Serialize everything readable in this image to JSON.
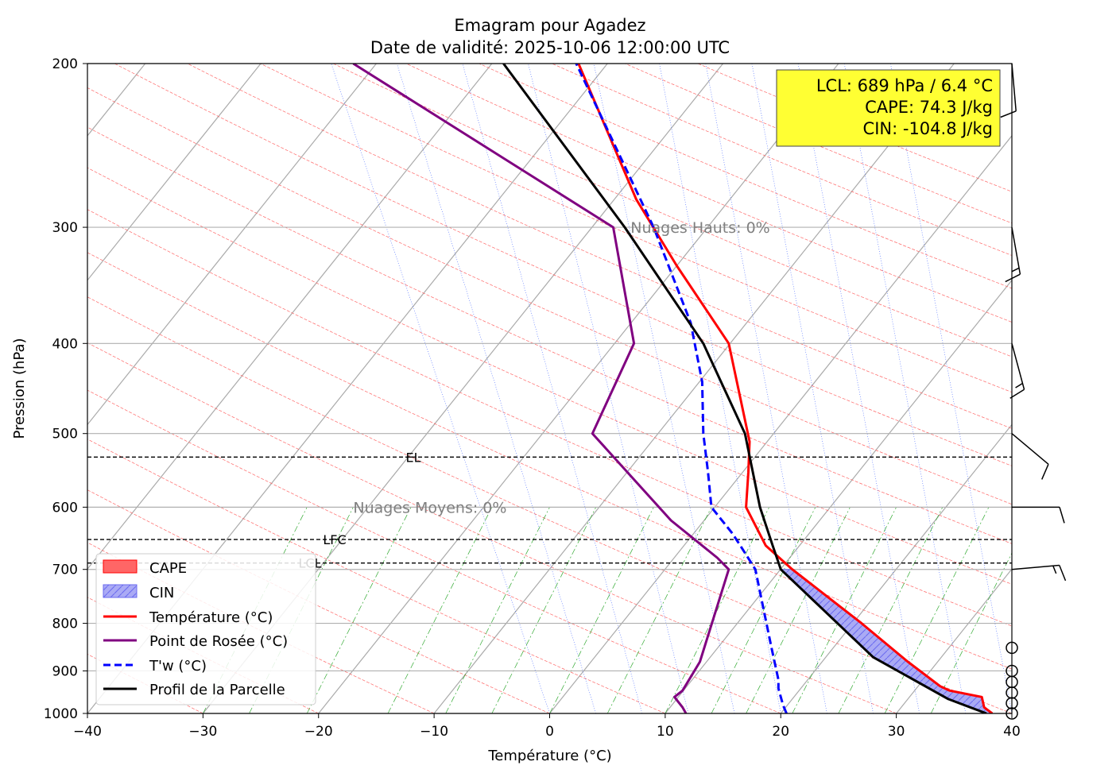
{
  "chart_data": {
    "type": "line",
    "title": "Emagram pour Agadez",
    "subtitle": "Date de validité: 2025-10-06 12:00:00 UTC",
    "xlabel": "Température (°C)",
    "ylabel": "Pression (hPa)",
    "xlim": [
      -40,
      40
    ],
    "ylim": [
      1000,
      200
    ],
    "y_scale": "log",
    "x_ticks": [
      -40,
      -30,
      -20,
      -10,
      0,
      10,
      20,
      30,
      40
    ],
    "x_tick_labels": [
      "−40",
      "−30",
      "−20",
      "−10",
      "0",
      "10",
      "20",
      "30",
      "40"
    ],
    "y_ticks": [
      1000,
      900,
      800,
      700,
      600,
      500,
      400,
      300,
      200
    ],
    "y_tick_labels": [
      "1000",
      "900",
      "800",
      "700",
      "600",
      "500",
      "400",
      "300",
      "200"
    ],
    "grid": true,
    "series": [
      {
        "name": "Température (°C)",
        "color": "#ff0000",
        "style": "solid",
        "points": [
          [
            38.3,
            1000
          ],
          [
            37.6,
            985
          ],
          [
            37.4,
            960
          ],
          [
            34.6,
            945
          ],
          [
            33.8,
            935
          ],
          [
            31.0,
            880
          ],
          [
            27.0,
            800
          ],
          [
            21.0,
            700
          ],
          [
            18.7,
            660
          ],
          [
            17.0,
            600
          ],
          [
            17.2,
            550
          ],
          [
            17.3,
            510
          ],
          [
            15.5,
            400
          ],
          [
            11.0,
            330
          ],
          [
            7.5,
            280
          ],
          [
            2.5,
            200
          ]
        ]
      },
      {
        "name": "Point de Rosée (°C)",
        "color": "#800080",
        "style": "solid",
        "points": [
          [
            11.8,
            1000
          ],
          [
            11.5,
            985
          ],
          [
            10.8,
            960
          ],
          [
            11.5,
            945
          ],
          [
            13.0,
            880
          ],
          [
            15.5,
            700
          ],
          [
            14.5,
            680
          ],
          [
            10.5,
            620
          ],
          [
            3.7,
            500
          ],
          [
            7.3,
            400
          ],
          [
            5.5,
            300
          ],
          [
            -17,
            200
          ]
        ]
      },
      {
        "name": "T'w (°C)",
        "color": "#0000ff",
        "style": "dashed",
        "points": [
          [
            20.5,
            1000
          ],
          [
            20.2,
            980
          ],
          [
            19.8,
            940
          ],
          [
            19.8,
            920
          ],
          [
            19.2,
            850
          ],
          [
            18.3,
            750
          ],
          [
            17.8,
            700
          ],
          [
            16.5,
            660
          ],
          [
            15.8,
            640
          ],
          [
            14.0,
            600
          ],
          [
            13.7,
            550
          ],
          [
            13.3,
            500
          ],
          [
            13.2,
            440
          ],
          [
            12.2,
            380
          ],
          [
            9.0,
            300
          ],
          [
            2.3,
            200
          ]
        ]
      },
      {
        "name": "Profil de la Parcelle",
        "color": "#000000",
        "style": "solid",
        "points": [
          [
            37.8,
            1000
          ],
          [
            34.5,
            965
          ],
          [
            28.0,
            870
          ],
          [
            20.0,
            700
          ],
          [
            19.3,
            660
          ],
          [
            18.2,
            600
          ],
          [
            16.9,
            500
          ],
          [
            13.3,
            400
          ],
          [
            6.5,
            300
          ],
          [
            -4,
            200
          ]
        ]
      }
    ],
    "levels": [
      {
        "label": "EL",
        "pressure": 530
      },
      {
        "label": "LFC",
        "pressure": 650
      },
      {
        "label": "LCL",
        "pressure": 689
      }
    ],
    "cloud_labels": [
      {
        "text": "Nuages Hauts: 0%",
        "pressure": 300,
        "temp": 7
      },
      {
        "text": "Nuages Moyens: 0%",
        "pressure": 600,
        "temp": -17
      }
    ],
    "legend_placement": "lower-left",
    "legend": [
      {
        "label": "CAPE",
        "kind": "patch",
        "color": "#ff6666"
      },
      {
        "label": "CIN",
        "kind": "hatch",
        "color": "#aaaaf5"
      },
      {
        "label": "Température (°C)",
        "kind": "line",
        "color": "#ff0000"
      },
      {
        "label": "Point de Rosée (°C)",
        "kind": "line",
        "color": "#800080"
      },
      {
        "label": "T'w (°C)",
        "kind": "dash",
        "color": "#0000ff"
      },
      {
        "label": "Profil de la Parcelle",
        "kind": "line",
        "color": "#000000"
      }
    ],
    "info_box": [
      "LCL: 689 hPa / 6.4 °C",
      "CAPE: 74.3 J/kg",
      "CIN: -104.8 J/kg"
    ],
    "info_box_color": "#ffff33",
    "wind_barbs": [
      {
        "pressure": 200,
        "direction": 355,
        "speed": 10
      },
      {
        "pressure": 300,
        "direction": 350,
        "speed": 15
      },
      {
        "pressure": 400,
        "direction": 345,
        "speed": 15
      },
      {
        "pressure": 500,
        "direction": 310,
        "speed": 10
      },
      {
        "pressure": 600,
        "direction": 270,
        "speed": 10
      },
      {
        "pressure": 700,
        "direction": 265,
        "speed": 15
      },
      {
        "pressure": 850,
        "speed": 0
      },
      {
        "pressure": 900,
        "speed": 0
      },
      {
        "pressure": 925,
        "speed": 0
      },
      {
        "pressure": 950,
        "speed": 0
      },
      {
        "pressure": 975,
        "speed": 0
      },
      {
        "pressure": 1000,
        "speed": 0
      }
    ]
  }
}
